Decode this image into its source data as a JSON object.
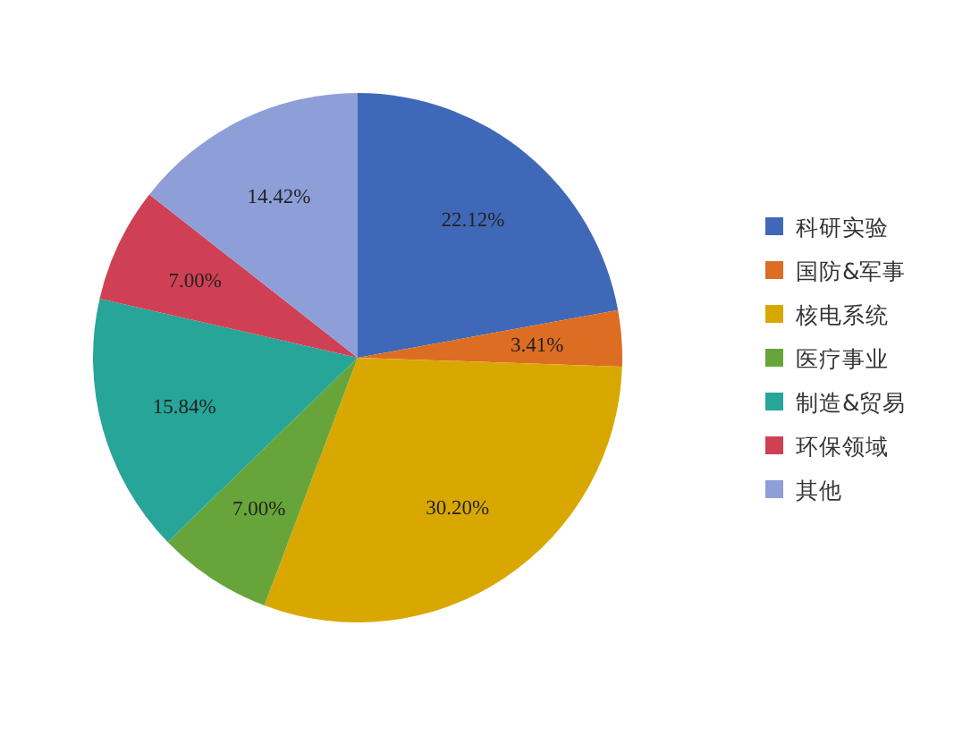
{
  "chart_data": {
    "type": "pie",
    "categories": [
      "科研实验",
      "国防&军事",
      "核电系统",
      "医疗事业",
      "制造&贸易",
      "环保领域",
      "其他"
    ],
    "values": [
      22.12,
      3.41,
      30.2,
      7.0,
      15.84,
      7.0,
      14.42
    ],
    "colors": [
      "#4068b8",
      "#dd6d22",
      "#d9a800",
      "#67a53a",
      "#27a598",
      "#d04055",
      "#8e9fd8"
    ],
    "value_labels": [
      "22.12%",
      "3.41%",
      "30.20%",
      "7.00%",
      "15.84%",
      "7.00%",
      "14.42%"
    ],
    "legend": "right"
  }
}
